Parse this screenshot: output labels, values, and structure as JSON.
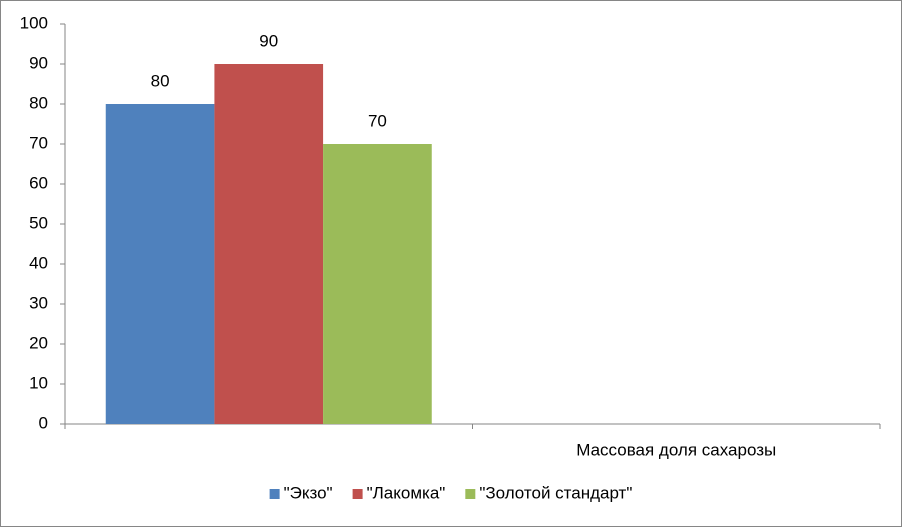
{
  "chart_data": {
    "type": "bar",
    "categories": [
      null,
      "Массовая доля сахарозы"
    ],
    "series": [
      {
        "name": "\"Экзо\"",
        "color": "#4f81bd",
        "values": [
          80,
          null
        ]
      },
      {
        "name": "\"Лакомка\"",
        "color": "#c0504d",
        "values": [
          90,
          null
        ]
      },
      {
        "name": "\"Золотой стандарт\"",
        "color": "#9bbb59",
        "values": [
          70,
          null
        ]
      }
    ],
    "ylim": [
      0,
      100
    ],
    "yticks": [
      0,
      10,
      20,
      30,
      40,
      50,
      60,
      70,
      80,
      90,
      100
    ],
    "grid": false,
    "data_labels": true,
    "legend": "bottom"
  }
}
